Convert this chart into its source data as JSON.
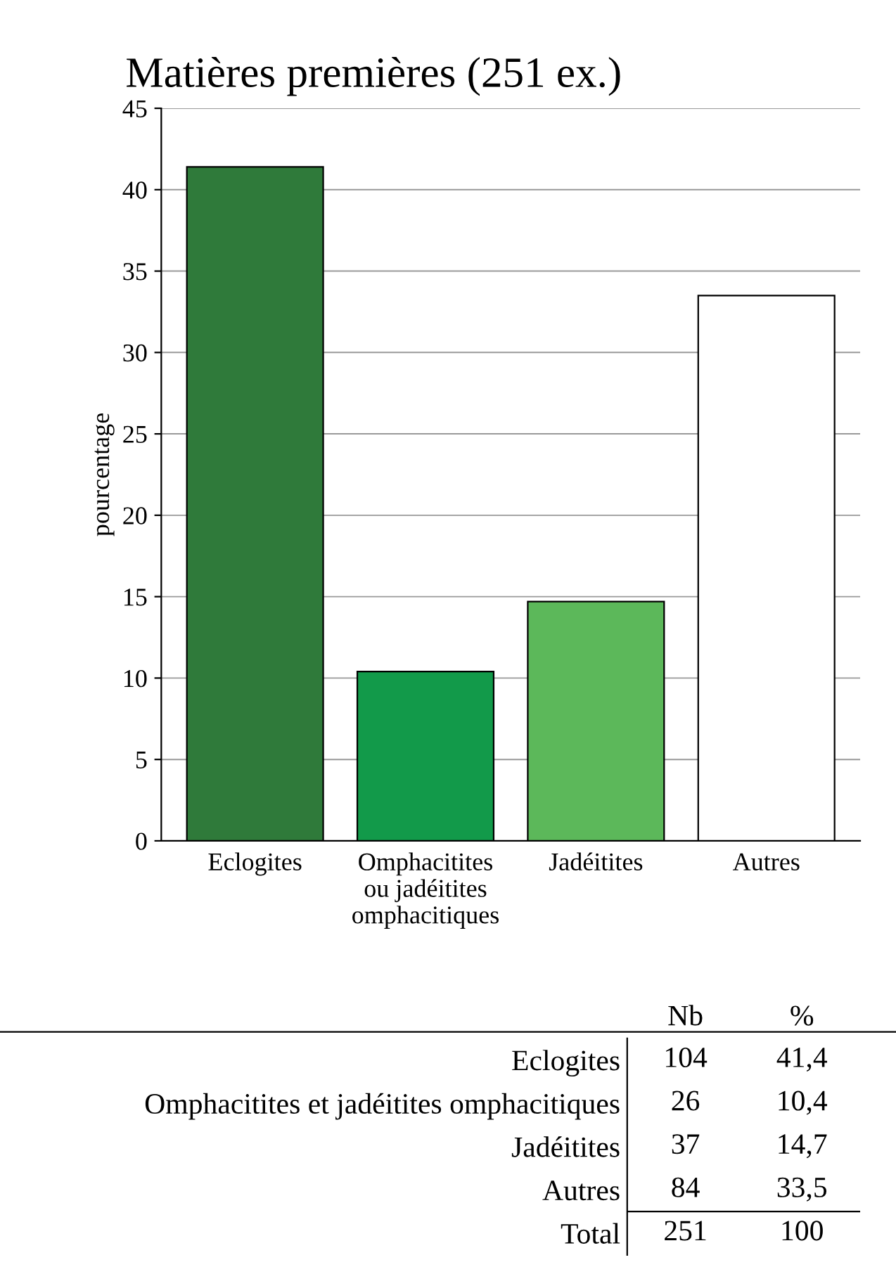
{
  "chart_data": [
    {
      "type": "bar",
      "title": "Matières premières (251 ex.)",
      "ylabel": "pourcentage",
      "categories": [
        "Eclogites",
        "Omphacitites\nou jadéitites\nomphacitiques",
        "Jadéitites",
        "Autres"
      ],
      "values": [
        41.4,
        10.4,
        14.7,
        33.5
      ],
      "colors": [
        "#2f7a3a",
        "#129a4a",
        "#5cb85a",
        "#ffffff"
      ],
      "ylim": [
        0,
        45
      ],
      "yticks": [
        0,
        5,
        10,
        15,
        20,
        25,
        30,
        35,
        40,
        45
      ],
      "grid": "y"
    },
    {
      "type": "other",
      "categories": [
        "Nb",
        "%"
      ],
      "y_categories": [
        "Eclogites",
        "Omphacitites et jadéitites omphacitiques",
        "Jadéitites",
        "Autres",
        "Total"
      ],
      "annotations": [
        "104",
        "41,4",
        "26",
        "10,4",
        "37",
        "14,7",
        "84",
        "33,5",
        "251",
        "100"
      ]
    }
  ]
}
